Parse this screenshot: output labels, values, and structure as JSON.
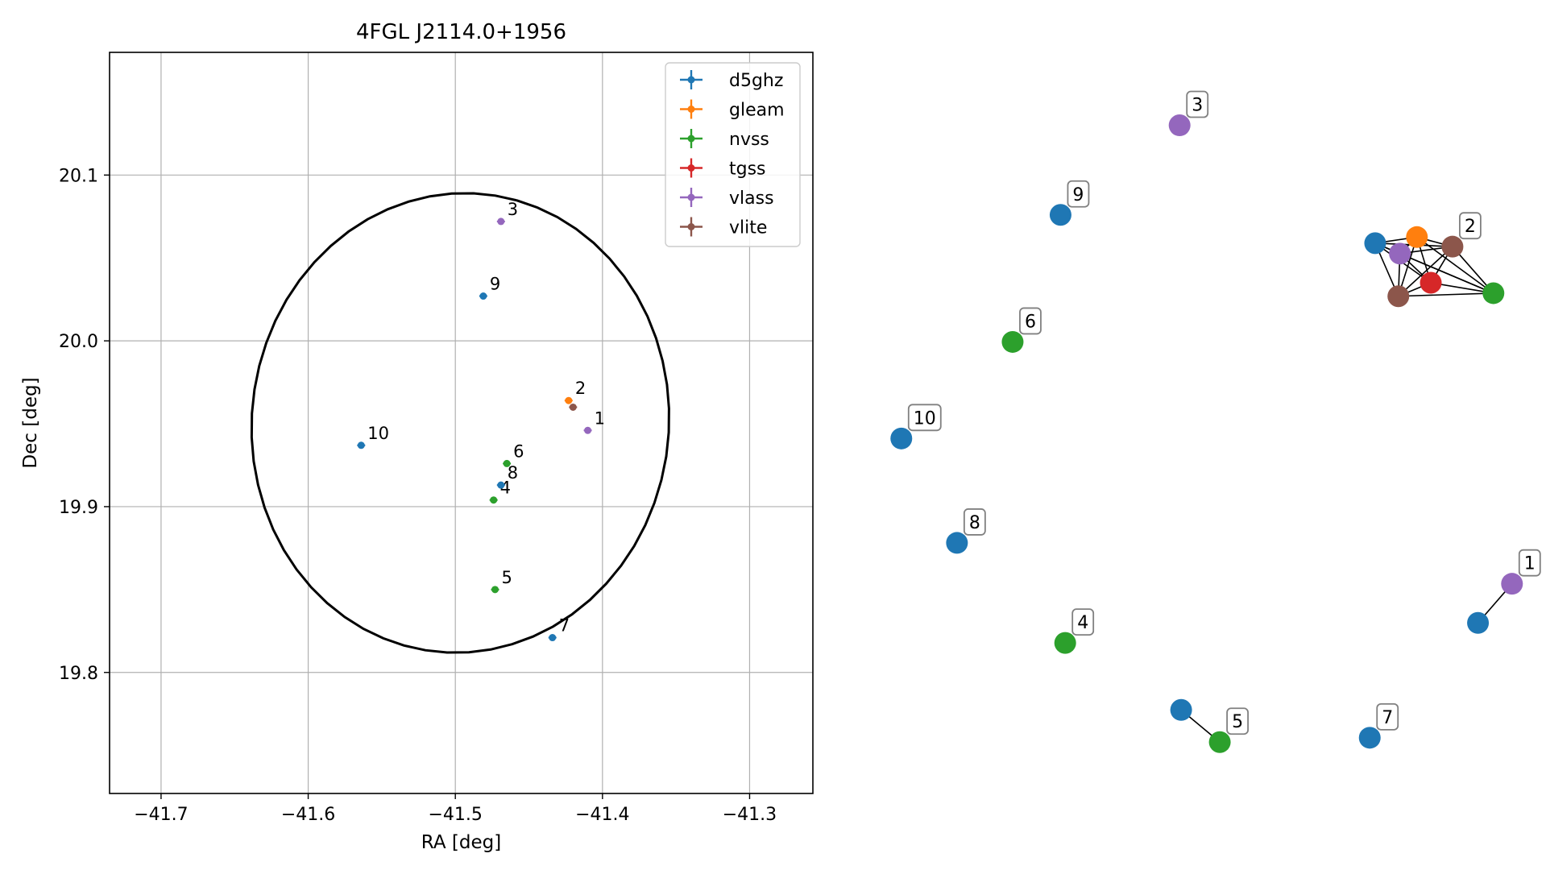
{
  "chart_data": [
    {
      "type": "scatter",
      "title": "4FGL J2114.0+1956",
      "xlabel": "RA [deg]",
      "ylabel": "Dec [deg]",
      "xlim": [
        -41.735,
        -41.257
      ],
      "ylim": [
        19.727,
        20.174
      ],
      "xticks": [
        -41.7,
        -41.6,
        -41.5,
        -41.4,
        -41.3
      ],
      "xtick_labels": [
        "−41.7",
        "−41.6",
        "−41.5",
        "−41.4",
        "−41.3"
      ],
      "yticks": [
        19.8,
        19.9,
        20.0,
        20.1
      ],
      "ytick_labels": [
        "19.8",
        "19.9",
        "20.0",
        "20.1"
      ],
      "grid": true,
      "legend_position": "top-right",
      "legend": [
        {
          "name": "d5ghz",
          "color": "#1f77b4"
        },
        {
          "name": "gleam",
          "color": "#ff7f0e"
        },
        {
          "name": "nvss",
          "color": "#2ca02c"
        },
        {
          "name": "tgss",
          "color": "#d62728"
        },
        {
          "name": "vlass",
          "color": "#9467bd"
        },
        {
          "name": "vlite",
          "color": "#8c564b"
        }
      ],
      "ellipse": {
        "center": [
          -41.4966,
          19.9505
        ],
        "semi_major": 0.139,
        "semi_minor": 0.133,
        "angle_deg": 75,
        "color": "#000000"
      },
      "points": [
        {
          "catalog": "vlass",
          "x": -41.41,
          "y": 19.946,
          "label": "1",
          "color": "#9467bd"
        },
        {
          "catalog": "gleam",
          "x": -41.423,
          "y": 19.964,
          "label": "2",
          "color": "#ff7f0e"
        },
        {
          "catalog": "vlite",
          "x": -41.42,
          "y": 19.96,
          "label": "",
          "color": "#8c564b"
        },
        {
          "catalog": "vlass",
          "x": -41.469,
          "y": 20.072,
          "label": "3",
          "color": "#9467bd"
        },
        {
          "catalog": "nvss",
          "x": -41.474,
          "y": 19.904,
          "label": "4",
          "color": "#2ca02c"
        },
        {
          "catalog": "nvss",
          "x": -41.473,
          "y": 19.85,
          "label": "5",
          "color": "#2ca02c"
        },
        {
          "catalog": "nvss",
          "x": -41.465,
          "y": 19.926,
          "label": "6",
          "color": "#2ca02c"
        },
        {
          "catalog": "d5ghz",
          "x": -41.434,
          "y": 19.821,
          "label": "7",
          "color": "#1f77b4"
        },
        {
          "catalog": "d5ghz",
          "x": -41.469,
          "y": 19.913,
          "label": "8",
          "color": "#1f77b4"
        },
        {
          "catalog": "d5ghz",
          "x": -41.481,
          "y": 20.027,
          "label": "9",
          "color": "#1f77b4"
        },
        {
          "catalog": "d5ghz",
          "x": -41.564,
          "y": 19.937,
          "label": "10",
          "color": "#1f77b4"
        }
      ]
    },
    {
      "type": "network",
      "nodes": [
        {
          "id": "a",
          "x": 0.8895,
          "y": 0.2795,
          "color": "#1f77b4",
          "label": ""
        },
        {
          "id": "b",
          "x": 0.9165,
          "y": 0.2725,
          "color": "#ff7f0e",
          "label": ""
        },
        {
          "id": "c",
          "x": 0.9395,
          "y": 0.2835,
          "color": "#8c564b",
          "label": "2"
        },
        {
          "id": "d",
          "x": 0.9055,
          "y": 0.2915,
          "color": "#9467bd",
          "label": ""
        },
        {
          "id": "e",
          "x": 0.9255,
          "y": 0.325,
          "color": "#d62728",
          "label": ""
        },
        {
          "id": "f",
          "x": 0.9045,
          "y": 0.3405,
          "color": "#8c564b",
          "label": ""
        },
        {
          "id": "g",
          "x": 0.966,
          "y": 0.337,
          "color": "#2ca02c",
          "label": ""
        },
        {
          "id": "n3",
          "x": 0.763,
          "y": 0.144,
          "color": "#9467bd",
          "label": "3"
        },
        {
          "id": "n9",
          "x": 0.686,
          "y": 0.247,
          "color": "#1f77b4",
          "label": "9"
        },
        {
          "id": "n6",
          "x": 0.655,
          "y": 0.393,
          "color": "#2ca02c",
          "label": "6"
        },
        {
          "id": "n10",
          "x": 0.583,
          "y": 0.504,
          "color": "#1f77b4",
          "label": "10"
        },
        {
          "id": "n8",
          "x": 0.619,
          "y": 0.624,
          "color": "#1f77b4",
          "label": "8"
        },
        {
          "id": "n4",
          "x": 0.689,
          "y": 0.739,
          "color": "#2ca02c",
          "label": "4"
        },
        {
          "id": "n1a",
          "x": 0.956,
          "y": 0.716,
          "color": "#1f77b4",
          "label": ""
        },
        {
          "id": "n1b",
          "x": 0.978,
          "y": 0.671,
          "color": "#9467bd",
          "label": "1"
        },
        {
          "id": "n5a",
          "x": 0.764,
          "y": 0.816,
          "color": "#1f77b4",
          "label": ""
        },
        {
          "id": "n5b",
          "x": 0.789,
          "y": 0.853,
          "color": "#2ca02c",
          "label": "5"
        },
        {
          "id": "n7",
          "x": 0.886,
          "y": 0.848,
          "color": "#1f77b4",
          "label": "7"
        }
      ],
      "edges": [
        [
          "a",
          "b"
        ],
        [
          "a",
          "c"
        ],
        [
          "a",
          "d"
        ],
        [
          "a",
          "e"
        ],
        [
          "a",
          "f"
        ],
        [
          "a",
          "g"
        ],
        [
          "b",
          "c"
        ],
        [
          "b",
          "d"
        ],
        [
          "b",
          "e"
        ],
        [
          "b",
          "f"
        ],
        [
          "b",
          "g"
        ],
        [
          "c",
          "d"
        ],
        [
          "c",
          "e"
        ],
        [
          "c",
          "f"
        ],
        [
          "c",
          "g"
        ],
        [
          "d",
          "e"
        ],
        [
          "d",
          "f"
        ],
        [
          "d",
          "g"
        ],
        [
          "e",
          "f"
        ],
        [
          "e",
          "g"
        ],
        [
          "f",
          "g"
        ],
        [
          "n1a",
          "n1b"
        ],
        [
          "n5a",
          "n5b"
        ]
      ]
    }
  ]
}
